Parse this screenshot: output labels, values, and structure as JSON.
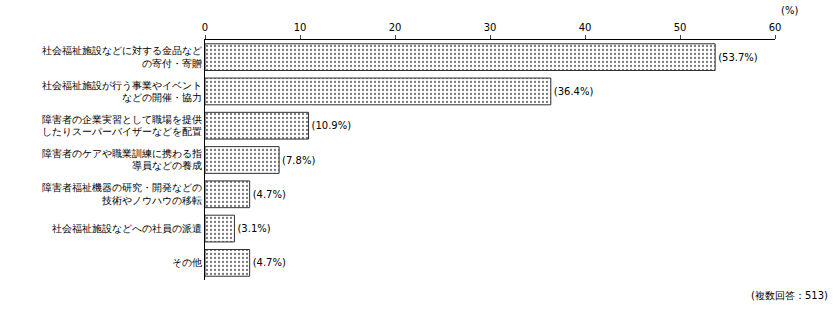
{
  "chart_data": {
    "type": "bar",
    "orientation": "horizontal",
    "categories": [
      "社会福祉施設などに対する金品などの寄付・寄贈",
      "社会福祉施設が行う事業やイベントなどの開催・協力",
      "障害者の企業実習として職場を提供したりスーパーバイザーなどを配置",
      "障害者のケアや職業訓練に携わる指導員などの養成",
      "障害者福祉機器の研究・開発などの技術やノウハウの移転",
      "社会福祉施設などへの社員の派遣",
      "その他"
    ],
    "values": [
      53.7,
      36.4,
      10.9,
      7.8,
      4.7,
      3.1,
      4.7
    ],
    "value_labels": [
      "(53.7%)",
      "(36.4%)",
      "(10.9%)",
      "(7.8%)",
      "(4.7%)",
      "(3.1%)",
      "(4.7%)"
    ],
    "data_labels": true,
    "color": "#c8c8c8",
    "xlim": [
      0,
      60
    ],
    "xticks": [
      0,
      10,
      20,
      30,
      40,
      50,
      60
    ],
    "xlabel": "(%)",
    "annotations": [
      "(複数回答：513)"
    ],
    "grid": false
  }
}
